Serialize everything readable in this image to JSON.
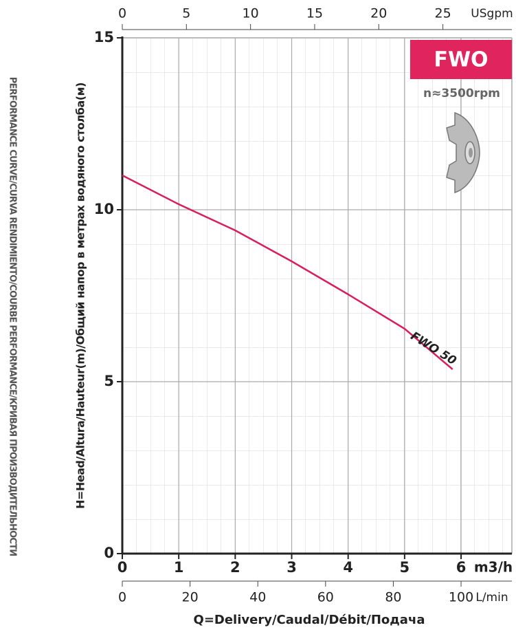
{
  "chart_data": {
    "type": "line",
    "title": "FWO",
    "subtitle": "n≈3500rpm",
    "side_title": "PERFORMANCE CURVE/CURVA RENDIMIENTO/COURBE PERFORMANCE/КРИВАЯ ПРОИЗВОДИТЕЛЬНОСТИ",
    "y_label": "H=Head/Altura/Hauteur(m)/Общий напор в метрах водяного столба(м)",
    "x_label": "Q=Delivery/Caudal/Débit/Подача",
    "x_unit": "m3/h",
    "x": [
      0,
      1,
      2,
      3,
      4,
      5,
      5.85
    ],
    "series": [
      {
        "name": "FWO 50",
        "color": "#d81e5b",
        "values": [
          11,
          10.16,
          9.4,
          8.5,
          7.54,
          6.54,
          5.36
        ]
      }
    ],
    "xlim": [
      0,
      6.9
    ],
    "xticks": [
      0,
      1,
      2,
      3,
      4,
      5,
      6
    ],
    "ylim": [
      0,
      15
    ],
    "yticks": [
      0,
      5,
      10,
      15
    ],
    "top_axis": {
      "unit": "USgpm",
      "xlim": [
        0,
        30.38
      ],
      "xticks": [
        0,
        5,
        10,
        15,
        20,
        25
      ]
    },
    "bottom_axis2": {
      "unit": "L/min",
      "xlim": [
        0,
        115
      ],
      "xticks": [
        0,
        20,
        40,
        60,
        80,
        100
      ]
    },
    "grid": true
  }
}
